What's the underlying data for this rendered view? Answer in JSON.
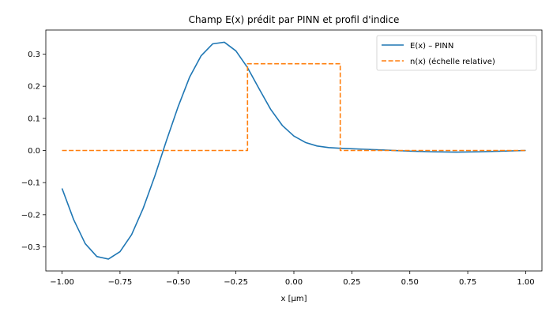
{
  "chart_data": {
    "type": "line",
    "title": "Champ E(x) prédit par PINN et profil d'indice",
    "xlabel": "x [µm]",
    "ylabel": "",
    "xlim": [
      -1.07,
      1.07
    ],
    "ylim": [
      -0.375,
      0.375
    ],
    "xticks": [
      -1.0,
      -0.75,
      -0.5,
      -0.25,
      0.0,
      0.25,
      0.5,
      0.75,
      1.0
    ],
    "xtick_labels": [
      "−1.00",
      "−0.75",
      "−0.50",
      "−0.25",
      "0.00",
      "0.25",
      "0.50",
      "0.75",
      "1.00"
    ],
    "yticks": [
      -0.3,
      -0.2,
      -0.1,
      0.0,
      0.1,
      0.2,
      0.3
    ],
    "ytick_labels": [
      "−0.3",
      "−0.2",
      "−0.1",
      "0.0",
      "0.1",
      "0.2",
      "0.3"
    ],
    "grid": false,
    "legend_position": "top-right",
    "series": [
      {
        "name": "E(x) – PINN",
        "color": "#1f77b4",
        "style": "solid",
        "x": [
          -1.0,
          -0.95,
          -0.9,
          -0.85,
          -0.8,
          -0.75,
          -0.7,
          -0.65,
          -0.6,
          -0.55,
          -0.5,
          -0.45,
          -0.4,
          -0.35,
          -0.3,
          -0.25,
          -0.2,
          -0.15,
          -0.1,
          -0.05,
          0.0,
          0.05,
          0.1,
          0.15,
          0.2,
          0.3,
          0.4,
          0.5,
          0.6,
          0.7,
          0.8,
          0.9,
          1.0
        ],
        "y": [
          -0.118,
          -0.215,
          -0.29,
          -0.33,
          -0.338,
          -0.315,
          -0.262,
          -0.18,
          -0.08,
          0.03,
          0.135,
          0.228,
          0.295,
          0.332,
          0.337,
          0.31,
          0.258,
          0.192,
          0.128,
          0.078,
          0.045,
          0.025,
          0.014,
          0.009,
          0.007,
          0.004,
          0.001,
          -0.002,
          -0.004,
          -0.005,
          -0.004,
          -0.002,
          0.0
        ]
      },
      {
        "name": "n(x) (échelle relative)",
        "color": "#ff7f0e",
        "style": "dashed",
        "x": [
          -1.0,
          -0.2,
          -0.2,
          0.2,
          0.2,
          1.0
        ],
        "y": [
          0.0,
          0.0,
          0.27,
          0.27,
          0.0,
          0.0
        ]
      }
    ]
  }
}
